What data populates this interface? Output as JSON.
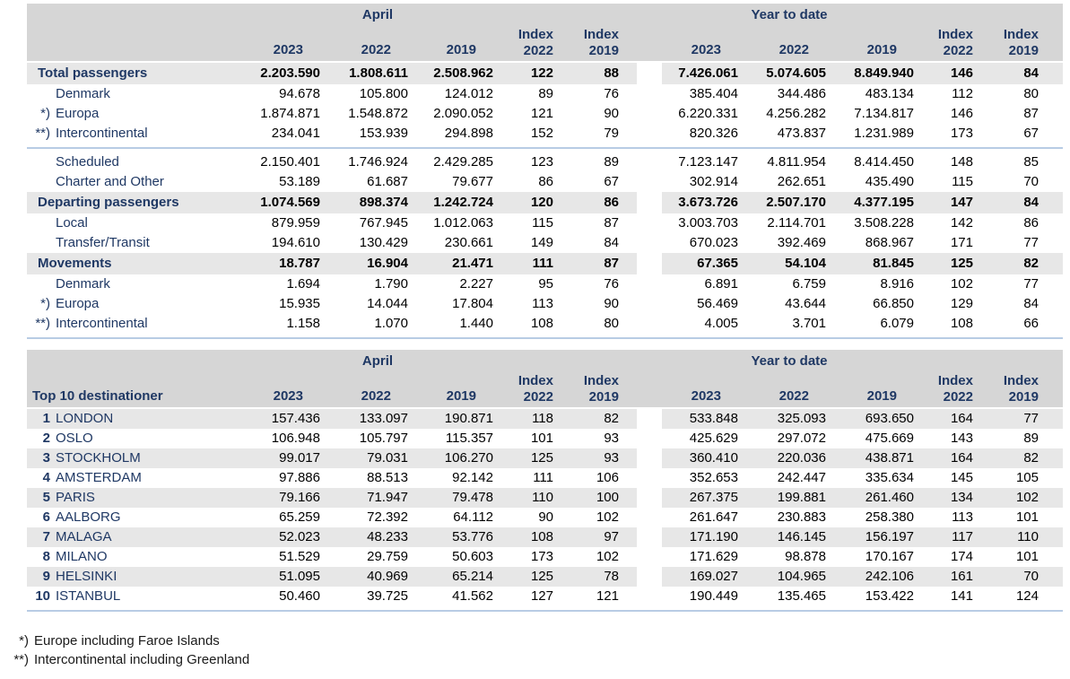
{
  "colors": {
    "header_band": "#d6d6d6",
    "row_band": "#e7e7e7",
    "navy_text": "#1f3864",
    "rule_blue": "#b8cce4"
  },
  "header": {
    "april": "April",
    "ytd": "Year to date",
    "index": "Index",
    "years": [
      "2023",
      "2022",
      "2019"
    ],
    "index_years": [
      "2022",
      "2019"
    ]
  },
  "table1": {
    "rows": [
      {
        "type": "group",
        "prefix": "",
        "label": "Total passengers",
        "april": [
          "2.203.590",
          "1.808.611",
          "2.508.962",
          "122",
          "88"
        ],
        "ytd": [
          "7.426.061",
          "5.074.605",
          "8.849.940",
          "146",
          "84"
        ],
        "rule_after": false
      },
      {
        "type": "sub",
        "prefix": "",
        "label": "Denmark",
        "april": [
          "94.678",
          "105.800",
          "124.012",
          "89",
          "76"
        ],
        "ytd": [
          "385.404",
          "344.486",
          "483.134",
          "112",
          "80"
        ],
        "rule_after": false
      },
      {
        "type": "sub",
        "prefix": "*)",
        "label": "Europa",
        "april": [
          "1.874.871",
          "1.548.872",
          "2.090.052",
          "121",
          "90"
        ],
        "ytd": [
          "6.220.331",
          "4.256.282",
          "7.134.817",
          "146",
          "87"
        ],
        "rule_after": false
      },
      {
        "type": "sub",
        "prefix": "**)",
        "label": "Intercontinental",
        "april": [
          "234.041",
          "153.939",
          "294.898",
          "152",
          "79"
        ],
        "ytd": [
          "820.326",
          "473.837",
          "1.231.989",
          "173",
          "67"
        ],
        "rule_after": true
      },
      {
        "type": "sub",
        "prefix": "",
        "label": "Scheduled",
        "april": [
          "2.150.401",
          "1.746.924",
          "2.429.285",
          "123",
          "89"
        ],
        "ytd": [
          "7.123.147",
          "4.811.954",
          "8.414.450",
          "148",
          "85"
        ],
        "rule_after": false
      },
      {
        "type": "sub",
        "prefix": "",
        "label": "Charter and Other",
        "april": [
          "53.189",
          "61.687",
          "79.677",
          "86",
          "67"
        ],
        "ytd": [
          "302.914",
          "262.651",
          "435.490",
          "115",
          "70"
        ],
        "rule_after": false
      },
      {
        "type": "group",
        "prefix": "",
        "label": "Departing passengers",
        "april": [
          "1.074.569",
          "898.374",
          "1.242.724",
          "120",
          "86"
        ],
        "ytd": [
          "3.673.726",
          "2.507.170",
          "4.377.195",
          "147",
          "84"
        ],
        "rule_after": false
      },
      {
        "type": "sub",
        "prefix": "",
        "label": "Local",
        "april": [
          "879.959",
          "767.945",
          "1.012.063",
          "115",
          "87"
        ],
        "ytd": [
          "3.003.703",
          "2.114.701",
          "3.508.228",
          "142",
          "86"
        ],
        "rule_after": false
      },
      {
        "type": "sub",
        "prefix": "",
        "label": "Transfer/Transit",
        "april": [
          "194.610",
          "130.429",
          "230.661",
          "149",
          "84"
        ],
        "ytd": [
          "670.023",
          "392.469",
          "868.967",
          "171",
          "77"
        ],
        "rule_after": false
      },
      {
        "type": "group",
        "prefix": "",
        "label": "Movements",
        "april": [
          "18.787",
          "16.904",
          "21.471",
          "111",
          "87"
        ],
        "ytd": [
          "67.365",
          "54.104",
          "81.845",
          "125",
          "82"
        ],
        "rule_after": false
      },
      {
        "type": "sub",
        "prefix": "",
        "label": "Denmark",
        "april": [
          "1.694",
          "1.790",
          "2.227",
          "95",
          "76"
        ],
        "ytd": [
          "6.891",
          "6.759",
          "8.916",
          "102",
          "77"
        ],
        "rule_after": false
      },
      {
        "type": "sub",
        "prefix": "*)",
        "label": "Europa",
        "april": [
          "15.935",
          "14.044",
          "17.804",
          "113",
          "90"
        ],
        "ytd": [
          "56.469",
          "43.644",
          "66.850",
          "129",
          "84"
        ],
        "rule_after": false
      },
      {
        "type": "sub",
        "prefix": "**)",
        "label": "Intercontinental",
        "april": [
          "1.158",
          "1.070",
          "1.440",
          "108",
          "80"
        ],
        "ytd": [
          "4.005",
          "3.701",
          "6.079",
          "108",
          "66"
        ],
        "rule_after": true
      }
    ]
  },
  "table2": {
    "title": "Top 10 destinationer",
    "rule_bottom": true,
    "rows": [
      {
        "rank": "1",
        "label": "LONDON",
        "april": [
          "157.436",
          "133.097",
          "190.871",
          "118",
          "82"
        ],
        "ytd": [
          "533.848",
          "325.093",
          "693.650",
          "164",
          "77"
        ]
      },
      {
        "rank": "2",
        "label": "OSLO",
        "april": [
          "106.948",
          "105.797",
          "115.357",
          "101",
          "93"
        ],
        "ytd": [
          "425.629",
          "297.072",
          "475.669",
          "143",
          "89"
        ]
      },
      {
        "rank": "3",
        "label": "STOCKHOLM",
        "april": [
          "99.017",
          "79.031",
          "106.270",
          "125",
          "93"
        ],
        "ytd": [
          "360.410",
          "220.036",
          "438.871",
          "164",
          "82"
        ]
      },
      {
        "rank": "4",
        "label": "AMSTERDAM",
        "april": [
          "97.886",
          "88.513",
          "92.142",
          "111",
          "106"
        ],
        "ytd": [
          "352.653",
          "242.447",
          "335.634",
          "145",
          "105"
        ]
      },
      {
        "rank": "5",
        "label": "PARIS",
        "april": [
          "79.166",
          "71.947",
          "79.478",
          "110",
          "100"
        ],
        "ytd": [
          "267.375",
          "199.881",
          "261.460",
          "134",
          "102"
        ]
      },
      {
        "rank": "6",
        "label": "AALBORG",
        "april": [
          "65.259",
          "72.392",
          "64.112",
          "90",
          "102"
        ],
        "ytd": [
          "261.647",
          "230.883",
          "258.380",
          "113",
          "101"
        ]
      },
      {
        "rank": "7",
        "label": "MALAGA",
        "april": [
          "52.023",
          "48.233",
          "53.776",
          "108",
          "97"
        ],
        "ytd": [
          "171.190",
          "146.145",
          "156.197",
          "117",
          "110"
        ]
      },
      {
        "rank": "8",
        "label": "MILANO",
        "april": [
          "51.529",
          "29.759",
          "50.603",
          "173",
          "102"
        ],
        "ytd": [
          "171.629",
          "98.878",
          "170.167",
          "174",
          "101"
        ]
      },
      {
        "rank": "9",
        "label": "HELSINKI",
        "april": [
          "51.095",
          "40.969",
          "65.214",
          "125",
          "78"
        ],
        "ytd": [
          "169.027",
          "104.965",
          "242.106",
          "161",
          "70"
        ]
      },
      {
        "rank": "10",
        "label": "ISTANBUL",
        "april": [
          "50.460",
          "39.725",
          "41.562",
          "127",
          "121"
        ],
        "ytd": [
          "190.449",
          "135.465",
          "153.422",
          "141",
          "124"
        ]
      }
    ]
  },
  "footnotes": [
    {
      "marker": "*)",
      "text": "Europe including Faroe Islands"
    },
    {
      "marker": "**)",
      "text": "Intercontinental including Greenland"
    }
  ]
}
